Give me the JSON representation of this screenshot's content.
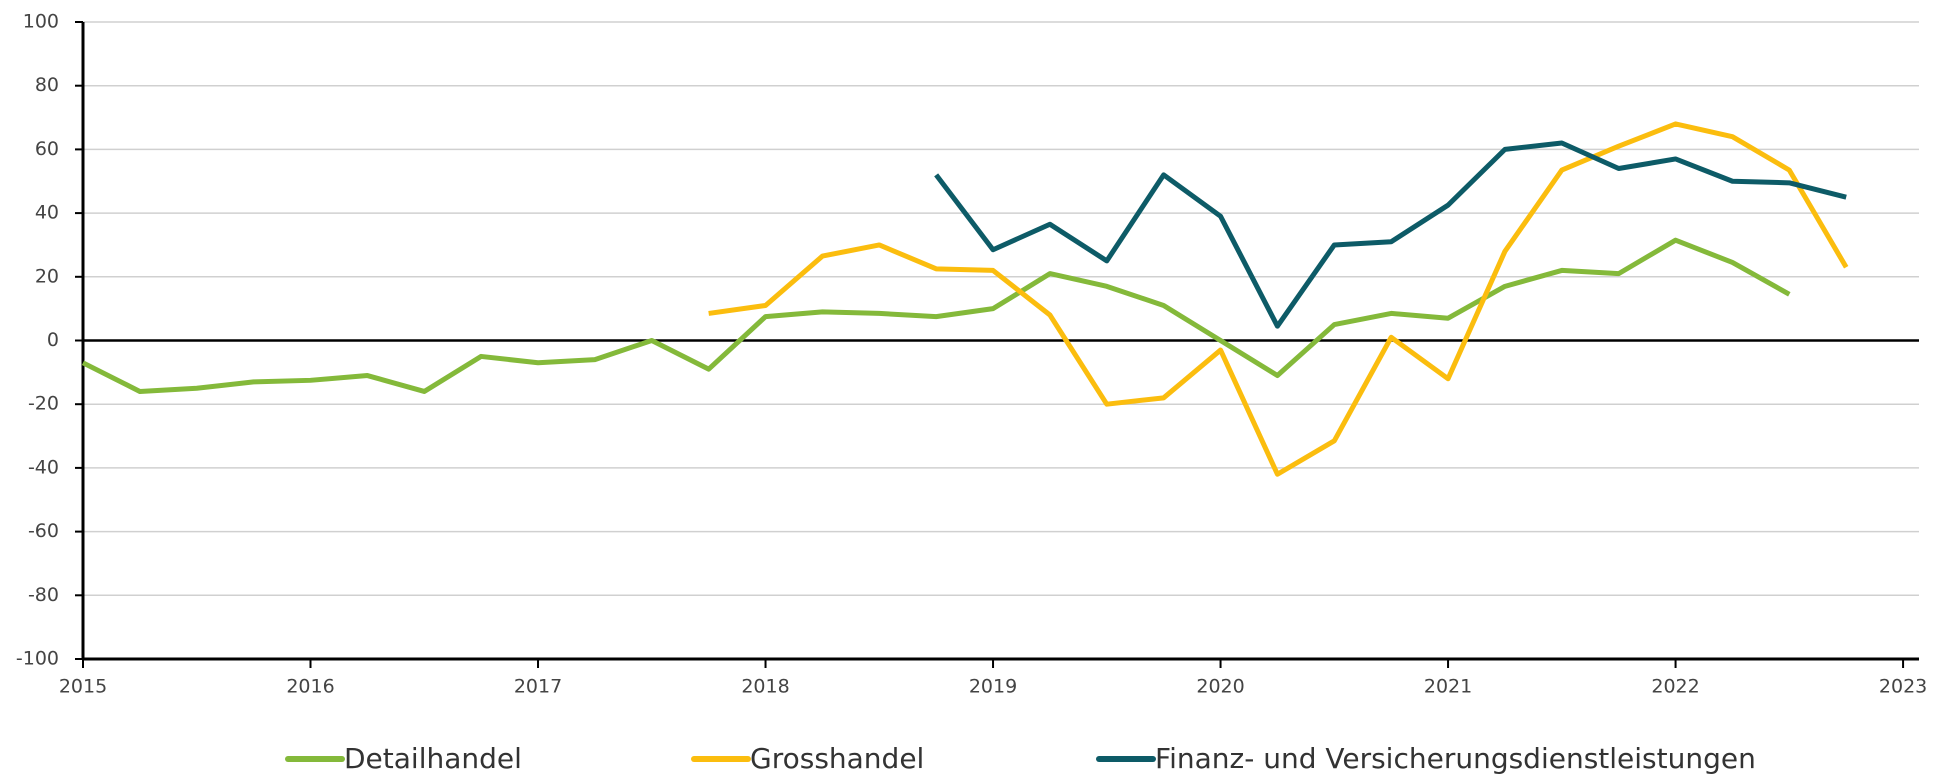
{
  "chart_data": {
    "type": "line",
    "x": [
      2015,
      2015.25,
      2015.5,
      2015.75,
      2016,
      2016.25,
      2016.5,
      2016.75,
      2017,
      2017.25,
      2017.5,
      2017.75,
      2018,
      2018.25,
      2018.5,
      2018.75,
      2019,
      2019.25,
      2019.5,
      2019.75,
      2020,
      2020.25,
      2020.5,
      2020.75,
      2021,
      2021.25,
      2021.5,
      2021.75,
      2022,
      2022.25,
      2022.5,
      2022.75
    ],
    "series": [
      {
        "name": "Detailhandel",
        "color": "#84b93a",
        "values": [
          -7,
          -16,
          -15,
          -13,
          -12.5,
          -11,
          -16,
          -5,
          -7,
          -6,
          0,
          -9,
          7.5,
          9,
          8.5,
          7.5,
          10,
          21,
          17,
          11,
          0,
          -11,
          5,
          8.5,
          7,
          17,
          22,
          21,
          31.5,
          24.5,
          14.5,
          null
        ]
      },
      {
        "name": "Grosshandel",
        "color": "#fbbd0e",
        "values": [
          null,
          null,
          null,
          null,
          null,
          null,
          null,
          null,
          null,
          null,
          null,
          8.5,
          11,
          26.5,
          30,
          22.5,
          22,
          8,
          -20,
          -18,
          -3,
          -42,
          -31.5,
          1,
          -12,
          28,
          53.5,
          61,
          68,
          64,
          53.5,
          23
        ]
      },
      {
        "name": "Finanz- und Versicherungsdienstleistungen",
        "color": "#0d5b67",
        "values": [
          null,
          null,
          null,
          null,
          null,
          null,
          null,
          null,
          null,
          null,
          null,
          null,
          null,
          null,
          null,
          52,
          28.5,
          36.5,
          25,
          52,
          39,
          4.5,
          30,
          31,
          42.5,
          60,
          62,
          54,
          57,
          50,
          49.5,
          45
        ]
      }
    ],
    "xlim": [
      2015,
      2023.07
    ],
    "xticks": [
      2015,
      2016,
      2017,
      2018,
      2019,
      2020,
      2021,
      2022,
      2023
    ],
    "ylim": [
      -100,
      100
    ],
    "yticks": [
      -100,
      -80,
      -60,
      -40,
      -20,
      0,
      20,
      40,
      60,
      80,
      100
    ],
    "grid": true,
    "legend": "bottom"
  }
}
